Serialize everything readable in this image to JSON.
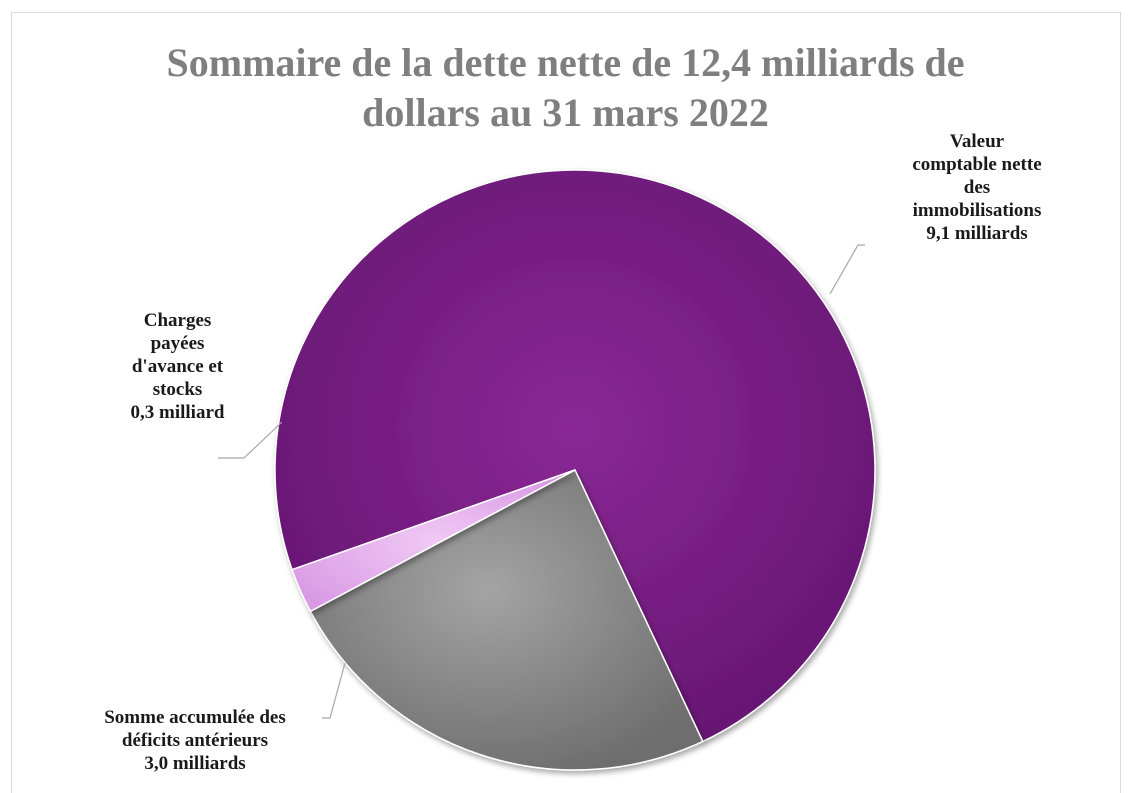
{
  "chart_data": {
    "type": "pie",
    "title_line1": "Sommaire de la dette nette de 12,4 milliards de",
    "title_line2": "dollars au 31 mars 2022",
    "slices": [
      {
        "label_lines": [
          "Valeur",
          "comptable nette",
          "des",
          "immobilisations",
          "9,1 milliards"
        ],
        "value": 9.1,
        "color": "#7a1c83"
      },
      {
        "label_lines": [
          "Somme accumulée des",
          "déficits antérieurs",
          "3,0 milliards"
        ],
        "value": 3.0,
        "color": "#8c8c8c"
      },
      {
        "label_lines": [
          "Charges",
          "payées",
          "d'avance et",
          "stocks",
          "0,3 milliard"
        ],
        "value": 0.3,
        "color": "#e4a8ee"
      }
    ],
    "legend": "none",
    "data_labels": "outside with leader lines"
  }
}
